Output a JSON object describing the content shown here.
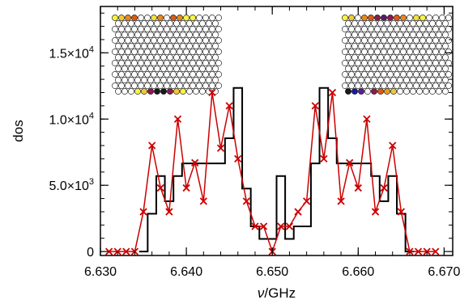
{
  "chart_data": {
    "type": "line",
    "xlabel_italic": "ν",
    "xlabel_rest": "/GHz",
    "ylabel": "dos",
    "xlim": [
      6.63,
      6.671
    ],
    "ylim": [
      -300,
      18500
    ],
    "x_ticks": [
      {
        "value": 6.63,
        "label": "6.630"
      },
      {
        "value": 6.64,
        "label": "6.640"
      },
      {
        "value": 6.65,
        "label": "6.650"
      },
      {
        "value": 6.66,
        "label": "6.660"
      },
      {
        "value": 6.67,
        "label": "6.670"
      }
    ],
    "y_ticks": [
      {
        "value": 0,
        "label": "0",
        "mant": "",
        "exp": ""
      },
      {
        "value": 5000,
        "label": "5.0×10^3",
        "mant": "5.0",
        "exp": "3"
      },
      {
        "value": 10000,
        "label": "1.0×10^4",
        "mant": "1.0",
        "exp": "4"
      },
      {
        "value": 15000,
        "label": "1.5×10^4",
        "mant": "1.5",
        "exp": "4"
      }
    ],
    "series": [
      {
        "style": "step",
        "color": "#000000",
        "x": [
          6.6345,
          6.6355,
          6.6365,
          6.6375,
          6.6385,
          6.6395,
          6.6405,
          6.6415,
          6.6425,
          6.6435,
          6.6445,
          6.6455,
          6.6465,
          6.6475,
          6.6485,
          6.6495,
          6.6505,
          6.6515,
          6.6525,
          6.6535,
          6.6545,
          6.6555,
          6.6565,
          6.6575,
          6.6585,
          6.6595,
          6.6605,
          6.6615,
          6.6625,
          6.6635,
          6.6645,
          6.6655
        ],
        "y": [
          0,
          2850,
          5700,
          3800,
          5700,
          6650,
          6650,
          6650,
          6650,
          6650,
          8550,
          12350,
          4750,
          1900,
          950,
          950,
          5700,
          950,
          1900,
          1900,
          6650,
          12350,
          8550,
          6650,
          6650,
          6650,
          6650,
          5700,
          3800,
          5700,
          2850,
          0
        ]
      },
      {
        "style": "line-x",
        "color": "#cc0000",
        "x": [
          6.631,
          6.632,
          6.633,
          6.634,
          6.635,
          6.636,
          6.637,
          6.638,
          6.639,
          6.64,
          6.641,
          6.642,
          6.643,
          6.644,
          6.645,
          6.646,
          6.647,
          6.648,
          6.649,
          6.65,
          6.651,
          6.652,
          6.653,
          6.654,
          6.655,
          6.656,
          6.657,
          6.658,
          6.659,
          6.66,
          6.661,
          6.662,
          6.663,
          6.664,
          6.665,
          6.666,
          6.667,
          6.668,
          6.669
        ],
        "y": [
          0,
          0,
          0,
          0,
          3000,
          8000,
          4800,
          3000,
          10000,
          4800,
          6700,
          3800,
          12000,
          7800,
          11000,
          7000,
          3800,
          1900,
          1900,
          0,
          1900,
          1900,
          3000,
          3800,
          11000,
          7000,
          12000,
          3800,
          6700,
          4800,
          10000,
          3000,
          4800,
          8000,
          3000,
          0,
          0,
          0,
          0
        ]
      }
    ]
  },
  "insets": [
    {
      "id": "left",
      "cols": 17,
      "rows": 14,
      "top_colors": [
        "#f7f53c",
        "#f2c833",
        "#e8881f",
        "#d95b17",
        "#fafafa",
        "#fafafa",
        "#f0e040",
        "#e8881f",
        "#fafafa",
        "#d95b17",
        "#e8881f",
        "#f7f53c",
        "#f7f53c"
      ],
      "bottom_colors": [
        "#fafafa",
        "#fafafa",
        "#fafafa",
        "#f7f53c",
        "#f2c833",
        "#8c1c4a",
        "#1a1a1a",
        "#1a1a1a",
        "#8c1c4a",
        "#f2c833",
        "#f7f53c",
        "#fafafa",
        "#fafafa"
      ]
    },
    {
      "id": "right",
      "cols": 17,
      "rows": 14,
      "top_colors": [
        "#f7f53c",
        "#f2c833",
        "#fafafa",
        "#e8881f",
        "#d95b17",
        "#8c1c4a",
        "#5c1a6a",
        "#8c1c4a",
        "#d95b17",
        "#e8881f",
        "#fafafa",
        "#f0e040",
        "#f7f53c"
      ],
      "bottom_colors": [
        "#1a1a1a",
        "#1a1a9a",
        "#5c1a9a",
        "#fafafa",
        "#8c1c4a",
        "#d95b17",
        "#e8a020",
        "#f2c833",
        "#fafafa",
        "#fafafa",
        "#fafafa",
        "#fafafa",
        "#fafafa"
      ]
    }
  ]
}
